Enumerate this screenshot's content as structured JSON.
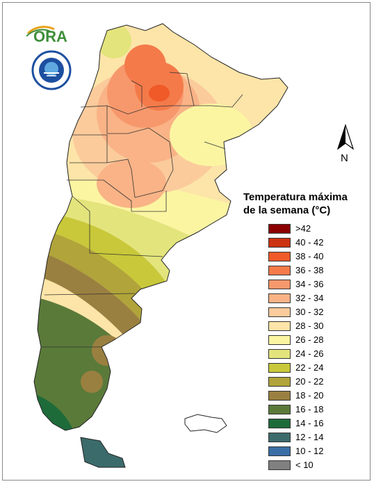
{
  "legend": {
    "title_line1": "Temperatura máxima",
    "title_line2": "de la semana (°C)",
    "items": [
      {
        "label": ">42",
        "color": "#8b0000"
      },
      {
        "label": "40 - 42",
        "color": "#cc3311"
      },
      {
        "label": "38 - 40",
        "color": "#f05a28"
      },
      {
        "label": "36 - 38",
        "color": "#f47a4a"
      },
      {
        "label": "34 - 36",
        "color": "#f7986c"
      },
      {
        "label": "32 - 34",
        "color": "#f9b386"
      },
      {
        "label": "30 - 32",
        "color": "#fbcb9c"
      },
      {
        "label": "28 - 30",
        "color": "#fde4a8"
      },
      {
        "label": "26 - 28",
        "color": "#fbf5a2"
      },
      {
        "label": "24 - 26",
        "color": "#e3e47c"
      },
      {
        "label": "22 - 24",
        "color": "#c8c83a"
      },
      {
        "label": "20 - 22",
        "color": "#b0a43a"
      },
      {
        "label": "18 - 20",
        "color": "#9a8040"
      },
      {
        "label": "16 - 18",
        "color": "#5a7a3a"
      },
      {
        "label": "14 - 16",
        "color": "#1e6b3a"
      },
      {
        "label": "12 - 14",
        "color": "#3c6b6b"
      },
      {
        "label": "10 - 12",
        "color": "#3a6ea5"
      },
      {
        "label": "< 10",
        "color": "#808080"
      }
    ]
  },
  "logos": {
    "ora_text": "ORA",
    "north_label": "N"
  }
}
